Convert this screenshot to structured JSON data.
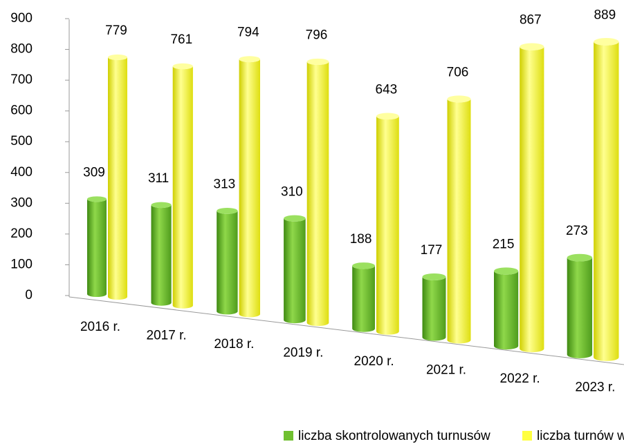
{
  "chart_data": {
    "type": "bar3d",
    "categories": [
      "2016 r.",
      "2017 r.",
      "2018 r.",
      "2019 r.",
      "2020 r.",
      "2021 r.",
      "2022 r.",
      "2023 r."
    ],
    "series": [
      {
        "name": "liczba skontrolowanych turnusów",
        "color": "#70c030",
        "values": [
          309,
          311,
          313,
          310,
          188,
          177,
          215,
          273
        ]
      },
      {
        "name": "liczba turnów w bazie wypoczynku",
        "color": "#ffff40",
        "values": [
          779,
          761,
          794,
          796,
          643,
          706,
          867,
          889
        ]
      }
    ],
    "ylim": [
      0,
      900
    ],
    "yticks": [
      0,
      100,
      200,
      300,
      400,
      500,
      600,
      700,
      800,
      900
    ],
    "legend": "bottom"
  }
}
